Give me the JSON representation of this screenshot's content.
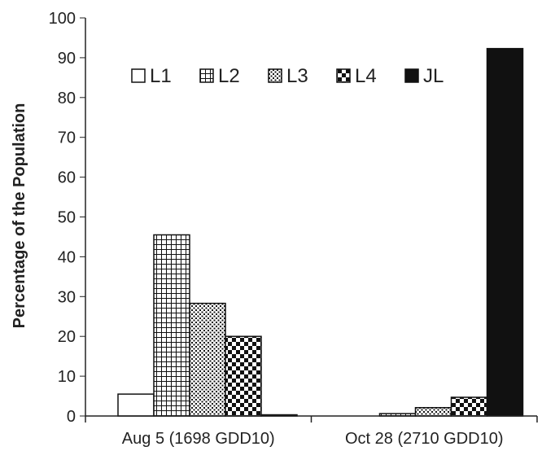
{
  "chart_data": {
    "type": "bar",
    "title": "",
    "xlabel": "",
    "ylabel": "Percentage of the Population",
    "ylim": [
      0,
      100
    ],
    "yticks": [
      0,
      10,
      20,
      30,
      40,
      50,
      60,
      70,
      80,
      90,
      100
    ],
    "ytick_labels": [
      "0",
      "10",
      "20",
      "30",
      "40",
      "50",
      "60",
      "70",
      "80",
      "90",
      "100"
    ],
    "grid": false,
    "legend_position": "top",
    "categories": [
      "Aug 5 (1698 GDD10)",
      "Oct 28 (2710 GDD10)"
    ],
    "series": [
      {
        "name": "L1",
        "values": [
          5.5,
          0
        ],
        "pattern": "empty"
      },
      {
        "name": "L2",
        "values": [
          45.5,
          0.6
        ],
        "pattern": "grid"
      },
      {
        "name": "L3",
        "values": [
          28.3,
          2.1
        ],
        "pattern": "dots"
      },
      {
        "name": "L4",
        "values": [
          20,
          4.7
        ],
        "pattern": "checker"
      },
      {
        "name": "JL",
        "values": [
          0.3,
          92.3
        ],
        "pattern": "solid"
      }
    ],
    "colors": {
      "stroke": "#111111",
      "fill_dark": "#111111",
      "fill_light": "#ffffff"
    }
  }
}
